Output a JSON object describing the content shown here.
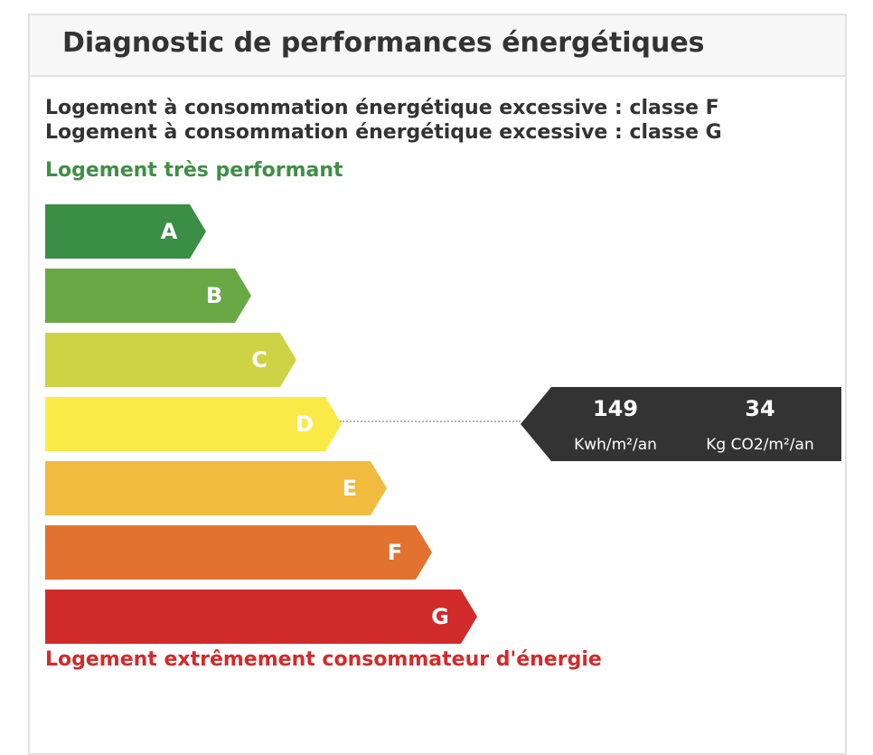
{
  "card": {
    "title": "Diagnostic de performances énergétiques"
  },
  "warnings": [
    "Logement à consommation énergétique excessive : classe F",
    "Logement à consommation énergétique excessive : classe G"
  ],
  "scale": {
    "top_label": "Logement très performant",
    "bottom_label": "Logement extrêmement consommateur d'énergie",
    "classes": [
      {
        "letter": "A",
        "color": "#3a8e45"
      },
      {
        "letter": "B",
        "color": "#6aa845"
      },
      {
        "letter": "C",
        "color": "#cdd344"
      },
      {
        "letter": "D",
        "color": "#f9ea48"
      },
      {
        "letter": "E",
        "color": "#f1bb3f"
      },
      {
        "letter": "F",
        "color": "#e27230"
      },
      {
        "letter": "G",
        "color": "#d22b2b"
      }
    ],
    "current_class": "D"
  },
  "indicator": {
    "energy_value": "149",
    "energy_unit": "Kwh/m²/an",
    "ghg_value": "34",
    "ghg_unit": "Kg CO2/m²/an",
    "background_color": "#333333"
  },
  "colors": {
    "top_label": "#3f8f46",
    "bottom_label": "#d22b2b",
    "text": "#333333"
  }
}
